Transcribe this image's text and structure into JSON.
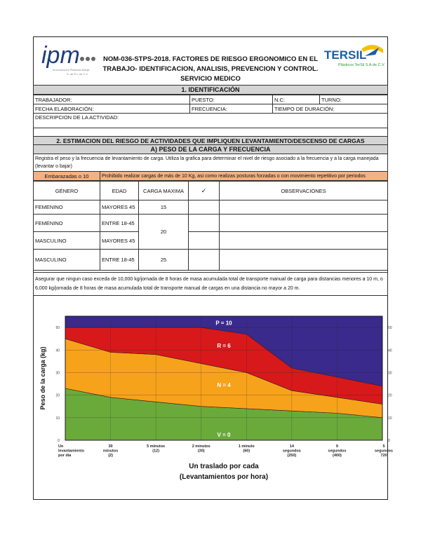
{
  "header": {
    "title_line1": "NOM-036-STPS-2018. FACTORES DE RIESGO ERGONOMICO EN EL",
    "title_line2": "TRABAJO- IDENTIFICACION, ANALISIS, PREVENCION Y CONTROL.",
    "title_line3": "SERVICIO MEDICO",
    "logo_left": "ipm",
    "logo_left_sub": "Innovaciones Plásticas Madje S. de R.L de C.V.",
    "logo_right": "TERSIL",
    "logo_right_sub": "Plásticos TerSil S.A de C.V."
  },
  "section1": {
    "title": "1. IDENTIFICACIÓN",
    "trabajador": "TRABAJADOR:",
    "puesto": "PUESTO:",
    "nc": "N.C:",
    "turno": "TURNO:",
    "fecha": "FECHA ELABORACIÓN:",
    "frecuencia": "FRECUENCIA:",
    "tiempo": "TIEMPO DE DURACIÓN:",
    "descripcion": "DESCRIPCION DE LA ACTIVIDAD:"
  },
  "section2": {
    "title": "2. ESTIMACION DEL RIESGO DE ACTIVIDADES QUE IMPLIQUEN LEVANTAMIENTO/DESCENSO DE CARGAS",
    "subtitle": "A) PESO DE LA CARGA Y FRECUENCIA",
    "instructions": "Registra el peso y la frecuencia de levantamiento de carga. Utiliza la grafica para determinar el nivel de riesgo asociado a la frecuencia y a la carga manejada (levantar o bajar)",
    "pregnant_label": "Embarazadas o 10",
    "pregnant_text": "Prohibido realizar cargas de más de 10 Kg, asi como realizas posturas forzadas o con movimiento repetitivo por periodos",
    "table": {
      "headers": [
        "GÉNERO",
        "EDAD",
        "CARGA MAXIMA",
        "✓",
        "OBSERVACIONES"
      ],
      "rows": [
        {
          "genero": "FEMENINO",
          "edad": "MAYORES 45",
          "carga": "15"
        },
        {
          "genero": "FEMENINO",
          "edad": "ENTRE 18-45",
          "carga": "20"
        },
        {
          "genero": "MASCULINO",
          "edad": "MAYORES 45"
        },
        {
          "genero": "MASCULINO",
          "edad": "ENTRE 18-45",
          "carga": "25"
        }
      ]
    },
    "note": "Asegurar que ningun caso exceda de 10,000 kg/jornada de 8 horas de masa acumulada total de transporte manual de carga para distancias menores a 10 m, o 6,000 kg/jornada de 8 horas de masa acumulada total de transporte manual de cargas en una distancia no mayor a 20 m."
  },
  "chart_data": {
    "type": "area",
    "ylabel": "Peso de la carga (kg)",
    "xlabel_line1": "Un traslado por cada",
    "xlabel_line2": "(Levantamientos por hora)",
    "ylim": [
      0,
      55
    ],
    "yticks": [
      0,
      10,
      20,
      30,
      40,
      50
    ],
    "categories": [
      [
        "Un",
        "levantamiento",
        "por día"
      ],
      [
        "30",
        "minutos",
        "(2)"
      ],
      [
        "5 minutos",
        "(12)"
      ],
      [
        "2 minutos",
        "(30)"
      ],
      [
        "1 minuto",
        "(60)"
      ],
      [
        "14",
        "segundos",
        "(250)"
      ],
      [
        "9",
        "segundos",
        "(400)"
      ],
      [
        "5",
        "segundos",
        "720"
      ]
    ],
    "series": [
      {
        "name": "V = 0",
        "color": "#6aaa3a",
        "upper": [
          23,
          19,
          17,
          15,
          14,
          13,
          12,
          10
        ]
      },
      {
        "name": "N = 4",
        "color": "#f7a21b",
        "upper": [
          45,
          39,
          38,
          34,
          30,
          22,
          19,
          16
        ]
      },
      {
        "name": "R = 6",
        "color": "#d7191c",
        "upper": [
          50,
          50,
          50,
          50,
          47,
          32,
          28,
          24
        ]
      },
      {
        "name": "P = 10",
        "color": "#3a2a8c",
        "upper": [
          55,
          55,
          55,
          55,
          55,
          55,
          55,
          55
        ]
      }
    ]
  }
}
